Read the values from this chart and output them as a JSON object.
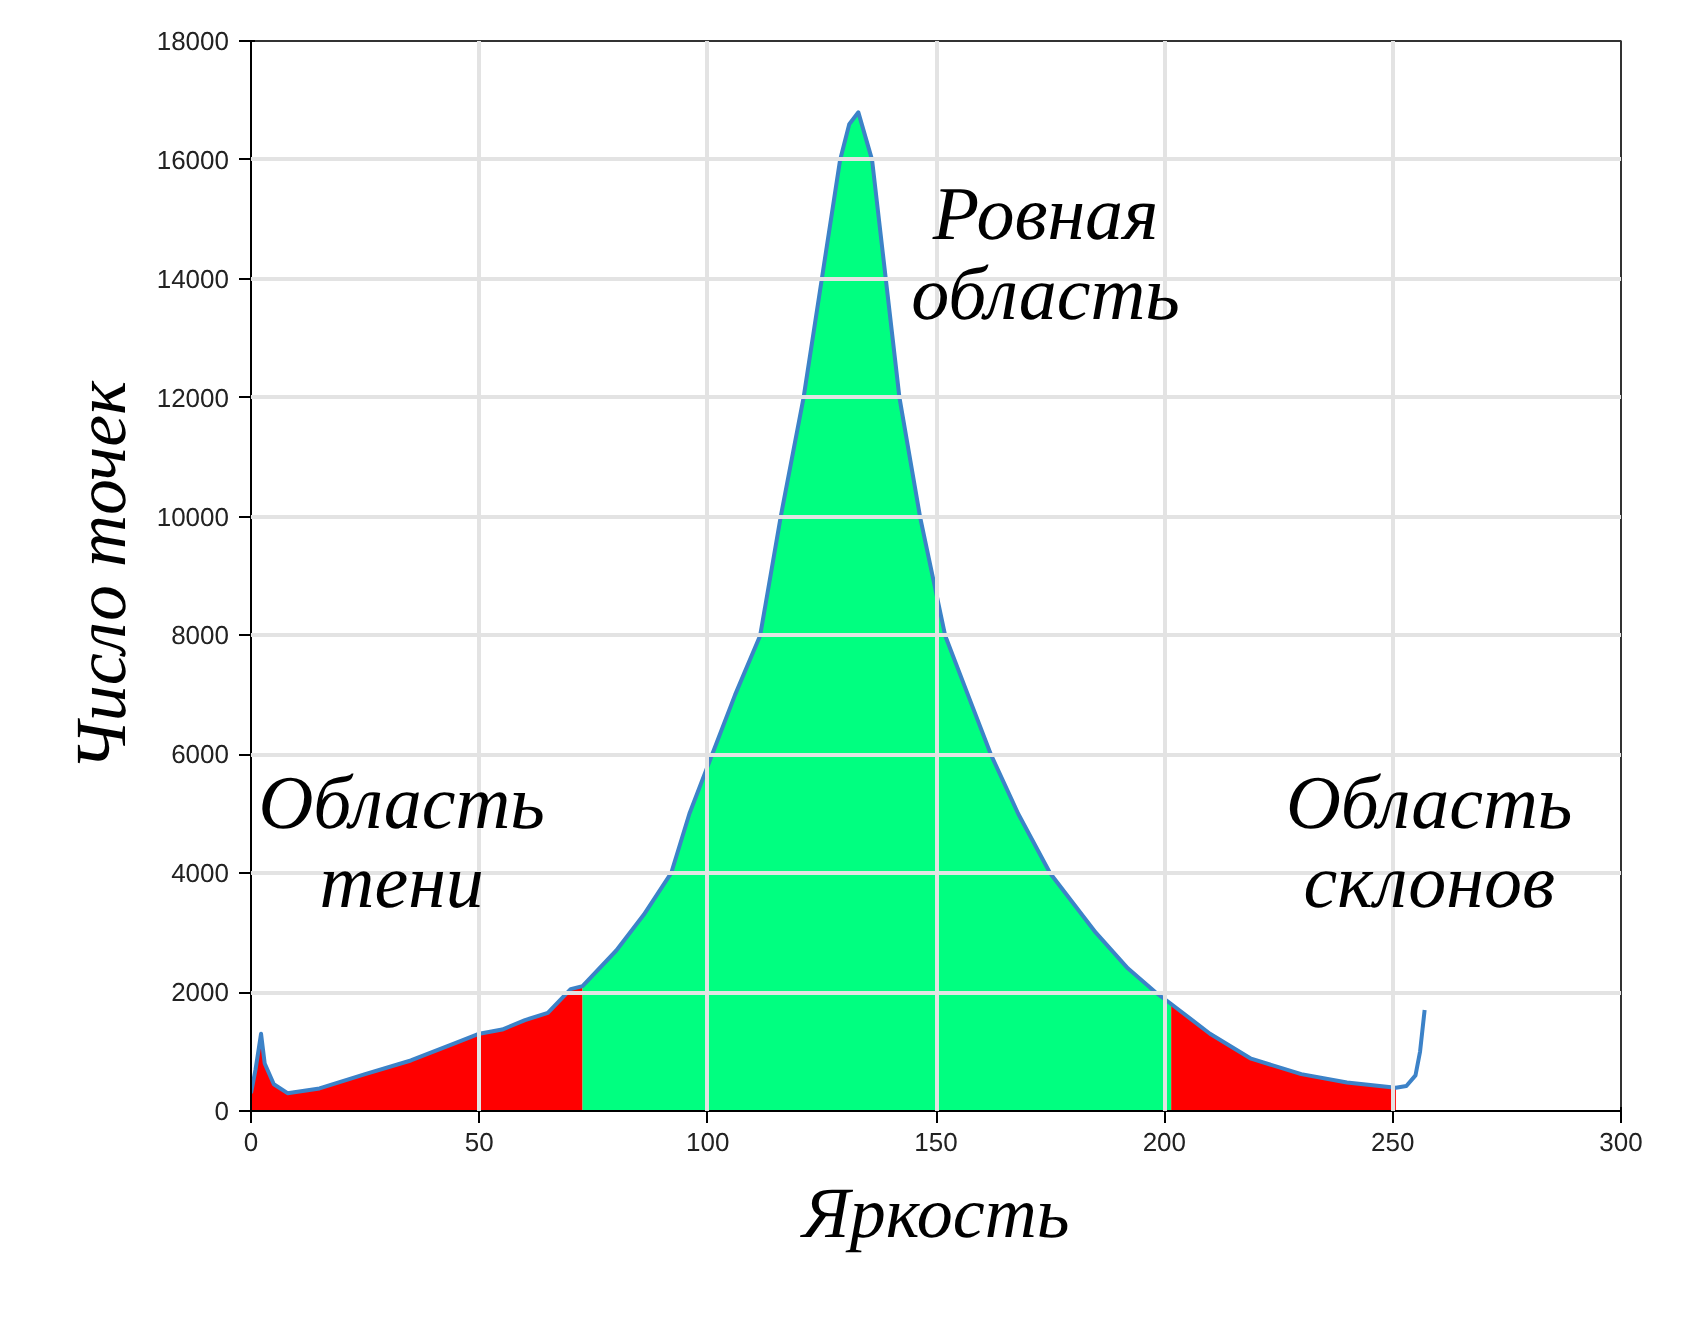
{
  "chart_data": {
    "type": "area",
    "xlabel": "Яркость",
    "ylabel": "Число точек",
    "xlim": [
      0,
      300
    ],
    "xticks": [
      0,
      50,
      100,
      150,
      200,
      250,
      300
    ],
    "ylim": [
      0,
      18000
    ],
    "yticks": [
      0,
      2000,
      4000,
      6000,
      8000,
      10000,
      12000,
      14000,
      16000,
      18000
    ],
    "grid": true,
    "series": [
      {
        "color": "#ff0000",
        "x": [
          0,
          1,
          2.2,
          3,
          5,
          8,
          15,
          25,
          35,
          45,
          50,
          55,
          60,
          65,
          70,
          72.6
        ],
        "values": [
          300,
          700,
          1300,
          800,
          450,
          300,
          380,
          620,
          850,
          1150,
          1300,
          1370,
          1530,
          1650,
          2050,
          2100
        ]
      },
      {
        "color": "#00ff80",
        "x": [
          72.6,
          80,
          86,
          92,
          96,
          101,
          106,
          111.5,
          116,
          121,
          125,
          129,
          131,
          133,
          136,
          139,
          142,
          146.5,
          152,
          157,
          162,
          168,
          175,
          185,
          192,
          198,
          201.5
        ],
        "values": [
          2100,
          2700,
          3300,
          4000,
          5000,
          6000,
          7000,
          8000,
          10000,
          12000,
          14000,
          16000,
          16600,
          16800,
          16000,
          14000,
          12000,
          10000,
          8000,
          7000,
          6000,
          5000,
          4000,
          3000,
          2400,
          2000,
          1800
        ]
      },
      {
        "color": "#ff0000",
        "x": [
          201.5,
          210,
          219,
          230,
          240,
          250.7
        ],
        "values": [
          1800,
          1300,
          880,
          620,
          480,
          390
        ]
      },
      {
        "type": "line",
        "color": "#3c82c8",
        "x": [
          0,
          1,
          2.2,
          3,
          5,
          8,
          15,
          25,
          35,
          45,
          50,
          55,
          60,
          65,
          70,
          72.6,
          80,
          86,
          92,
          96,
          101,
          106,
          111.5,
          116,
          121,
          125,
          129,
          131,
          133,
          136,
          139,
          142,
          146.5,
          152,
          157,
          162,
          168,
          175,
          185,
          192,
          198,
          201.5,
          210,
          219,
          230,
          240,
          250.7,
          253,
          255,
          256,
          257
        ],
        "values": [
          300,
          700,
          1300,
          800,
          450,
          300,
          380,
          620,
          850,
          1150,
          1300,
          1370,
          1530,
          1650,
          2050,
          2100,
          2700,
          3300,
          4000,
          5000,
          6000,
          7000,
          8000,
          10000,
          12000,
          14000,
          16000,
          16600,
          16800,
          16000,
          14000,
          12000,
          10000,
          8000,
          7000,
          6000,
          5000,
          4000,
          3000,
          2400,
          2000,
          1800,
          1300,
          880,
          620,
          480,
          390,
          420,
          600,
          1000,
          1700
        ]
      }
    ],
    "annotations": [
      "Область\nтени",
      "Ровная\nобласть",
      "Область\nсклонов"
    ]
  }
}
